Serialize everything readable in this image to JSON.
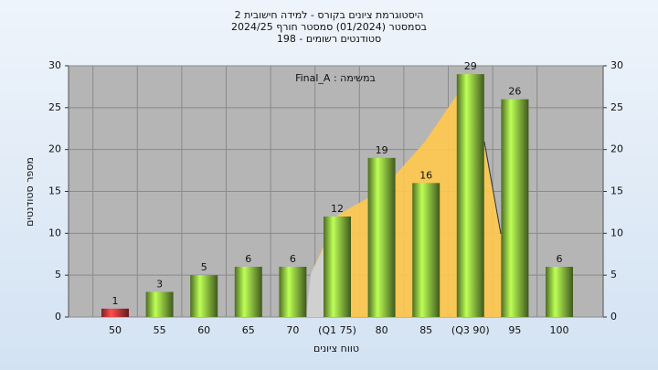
{
  "chart_data": {
    "type": "bar",
    "title": [
      "היסטוגרמת ציונים בקורס - למידה חישובית 2",
      "בסמסטר  (01/2024)  סמסטר חורף 2024/25",
      "סטודנטים רשומים - 198"
    ],
    "annotation": "Final_A : במשימה",
    "x_label": "טווח ציונים",
    "y_label": "מספר סטודנטים",
    "categories": [
      "50",
      "55",
      "60",
      "65",
      "70",
      "(Q1 75)",
      "80",
      "85",
      "(Q3 90)",
      "95",
      "100"
    ],
    "values": [
      1,
      3,
      5,
      6,
      6,
      12,
      19,
      16,
      29,
      26,
      6
    ],
    "colors": [
      "#e03a3a",
      "#8cc540",
      "#8cc540",
      "#8cc540",
      "#8cc540",
      "#8cc540",
      "#8cc540",
      "#8cc540",
      "#8cc540",
      "#8cc540",
      "#8cc540"
    ],
    "ylim": [
      0,
      30
    ],
    "yticks": [
      0,
      5,
      10,
      15,
      20,
      25,
      30
    ],
    "grid": true
  }
}
